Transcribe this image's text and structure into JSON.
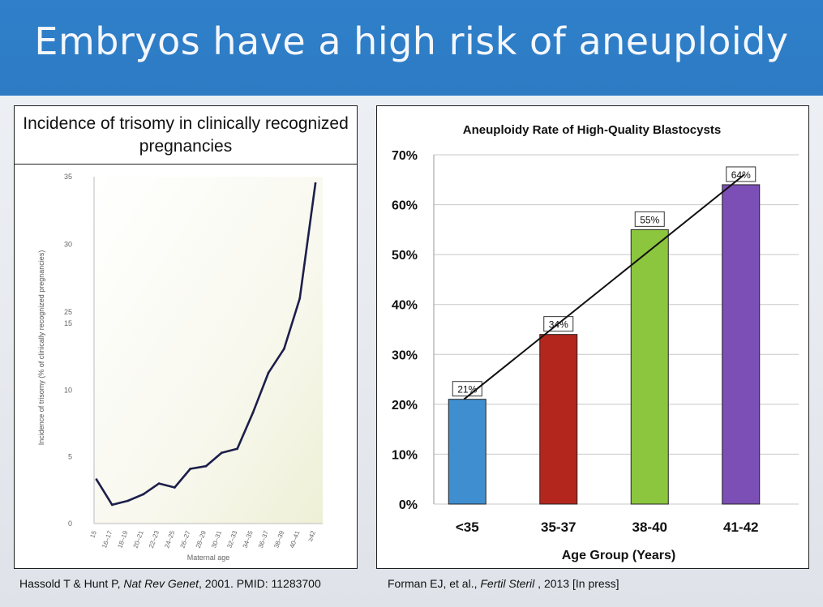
{
  "slide": {
    "title": "Embryos have a high risk of aneuploidy"
  },
  "colors": {
    "title_bar": "#2e7bc4",
    "line_series": "#1c1f4a",
    "bar_lt35": "#3f8fd0",
    "bar_35_37": "#b3261e",
    "bar_38_40": "#8cc63e",
    "bar_41_42": "#7b4fb5"
  },
  "chart_data": [
    {
      "type": "line",
      "title": "Incidence of trisomy in clinically recognized pregnancies",
      "xlabel": "Maternal age",
      "ylabel": "Incidence of trisomy (% of clinically recognized pregnancies)",
      "yticks": [
        "0",
        "5",
        "10",
        "15",
        "25",
        "30",
        "35"
      ],
      "y_axis_break": "between 15 and 25",
      "x": [
        "15",
        "16–17",
        "18–19",
        "20–21",
        "22–23",
        "24–25",
        "26–27",
        "28–29",
        "30–31",
        "32–33",
        "34–35",
        "36–37",
        "38–39",
        "40–41",
        "≥42"
      ],
      "values": [
        3.3,
        1.4,
        1.7,
        2.2,
        3.0,
        2.7,
        4.1,
        4.3,
        5.3,
        5.6,
        8.3,
        11.3,
        13.1,
        26.0,
        34.5
      ],
      "grid": false,
      "background": "gradient fill"
    },
    {
      "type": "bar",
      "title": "Aneuploidy Rate of High-Quality Blastocysts",
      "xlabel": "Age Group (Years)",
      "ylabel": "",
      "categories": [
        "<35",
        "35-37",
        "38-40",
        "41-42"
      ],
      "values": [
        21,
        34,
        55,
        64
      ],
      "data_labels": [
        "21%",
        "34%",
        "55%",
        "64%"
      ],
      "ylim": [
        0,
        70
      ],
      "yticks": [
        "0%",
        "10%",
        "20%",
        "30%",
        "40%",
        "50%",
        "60%",
        "70%"
      ],
      "trendline": "linear",
      "grid": true
    }
  ],
  "captions": {
    "left_prefix": "Hassold T & Hunt P, ",
    "left_journal": "Nat Rev Genet",
    "left_suffix": ", 2001. PMID: 11283700",
    "right_prefix": "Forman EJ, et al., ",
    "right_journal": "Fertil Steril",
    "right_suffix": " , 2013 [In press]"
  }
}
